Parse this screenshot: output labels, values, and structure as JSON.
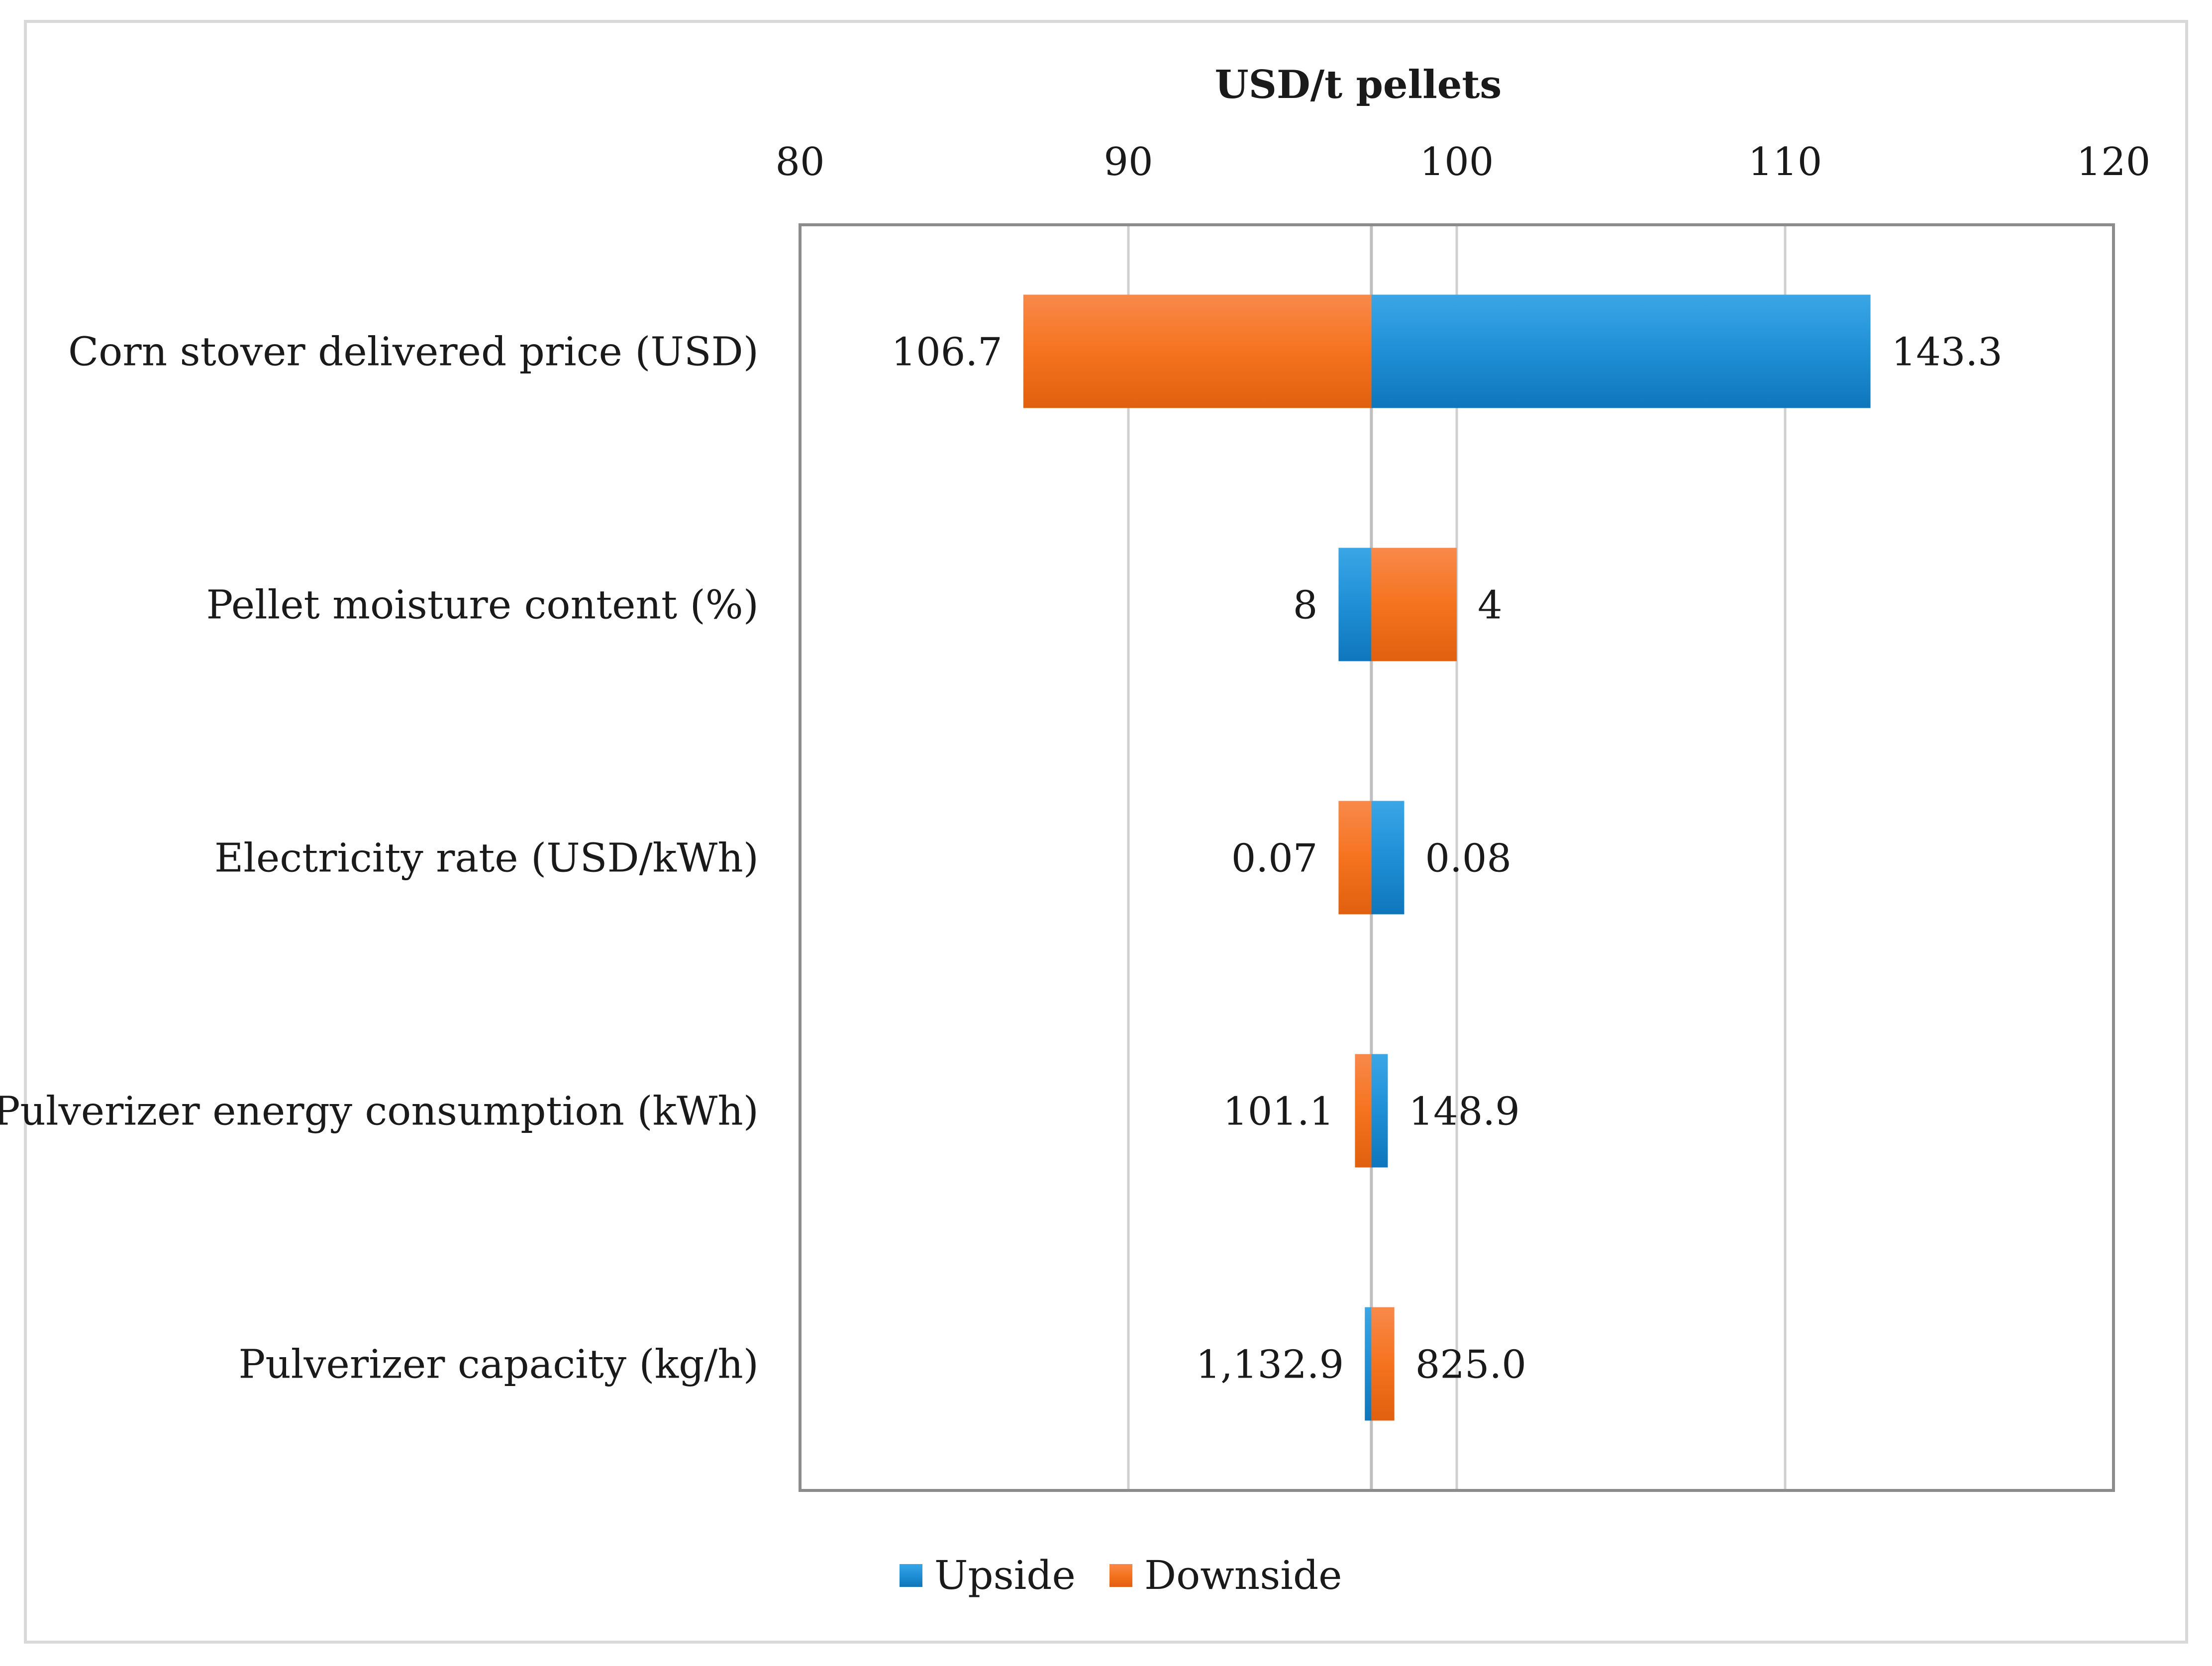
{
  "chart_data": {
    "type": "bar",
    "subtype": "tornado",
    "title": "USD/t pellets",
    "xlim": [
      80,
      120
    ],
    "xticks": [
      80,
      90,
      100,
      110,
      120
    ],
    "tick_labels": [
      "80",
      "90",
      "100",
      "110",
      "120"
    ],
    "baseline": 97.4,
    "xgrid": true,
    "legend_position": "bottom",
    "colors": {
      "Upside": "#1f8fd6",
      "Downside": "#f5731f"
    },
    "categories": [
      "Corn stover delivered price (USD)",
      "Pellet moisture content (%)",
      "Electricity rate (USD/kWh)",
      "Pulverizer energy consumption (kWh)",
      "Pulverizer capacity (kg/h)"
    ],
    "series": [
      {
        "name": "Upside",
        "values": [
          112.6,
          96.4,
          98.4,
          97.9,
          97.2
        ],
        "labels": [
          "143.3",
          "8",
          "0.08",
          "148.9",
          "1,132.9"
        ]
      },
      {
        "name": "Downside",
        "values": [
          86.8,
          100.0,
          96.4,
          96.9,
          98.1
        ],
        "labels": [
          "106.7",
          "4",
          "0.07",
          "101.1",
          "825.0"
        ]
      }
    ]
  }
}
